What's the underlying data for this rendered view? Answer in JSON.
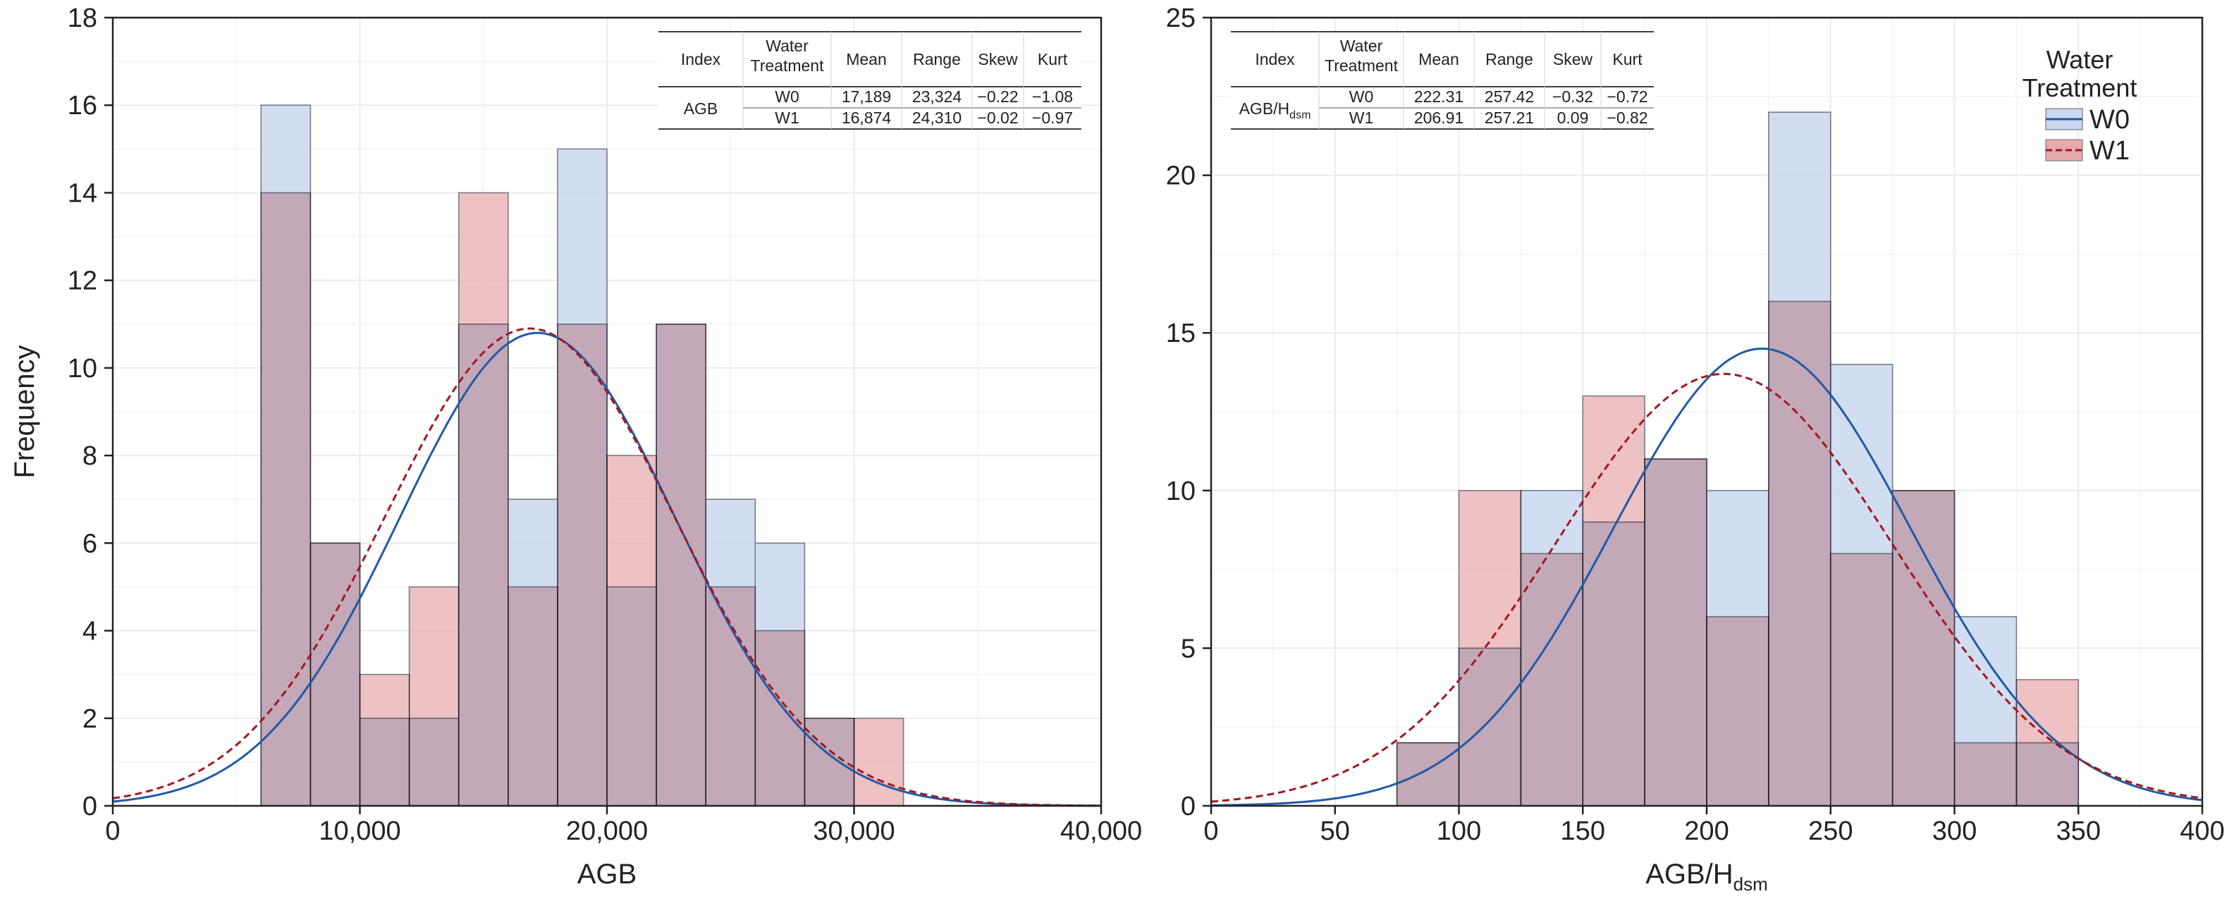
{
  "colors": {
    "w0_fill": "#c9d8ee",
    "w1_fill": "#e8a9aa",
    "w0_line": "#1f5aa6",
    "w1_line": "#a3171c",
    "overlap": "#c7a4b2",
    "bar_edge": "#7a7a8a",
    "grid": "#ebebeb"
  },
  "chart_data": [
    {
      "type": "bar",
      "subtype": "overlaid-histogram",
      "xlabel": "AGB",
      "ylabel": "Frequency",
      "xlim": [
        0,
        40000
      ],
      "ylim": [
        0,
        18
      ],
      "xticks": [
        0,
        10000,
        20000,
        30000,
        40000
      ],
      "xtick_labels": [
        "0",
        "10,000",
        "20,000",
        "30,000",
        "40,000"
      ],
      "yticks": [
        0,
        2,
        4,
        6,
        8,
        10,
        12,
        14,
        16,
        18
      ],
      "ytick_labels": [
        "0",
        "2",
        "4",
        "6",
        "8",
        "10",
        "12",
        "14",
        "16",
        "18"
      ],
      "bin_edges": [
        6000,
        8000,
        10000,
        12000,
        14000,
        16000,
        18000,
        20000,
        22000,
        24000,
        26000,
        28000,
        30000,
        32000
      ],
      "series": [
        {
          "name": "W0",
          "values": [
            16,
            6,
            2,
            2,
            11,
            7,
            15,
            5,
            11,
            7,
            6,
            2,
            0
          ],
          "normal": {
            "mean": 17189,
            "sd": 5600,
            "peak": 10.8
          }
        },
        {
          "name": "W1",
          "values": [
            14,
            6,
            3,
            5,
            14,
            5,
            11,
            8,
            11,
            5,
            4,
            2,
            2
          ],
          "normal": {
            "mean": 16874,
            "sd": 5850,
            "peak": 10.9
          }
        }
      ],
      "stats_table": {
        "headers": [
          "Index",
          "Water Treatment",
          "Mean",
          "Range",
          "Skew",
          "Kurt"
        ],
        "header_lines": [
          [
            "Index"
          ],
          [
            "Water",
            "Treatment"
          ],
          [
            "Mean"
          ],
          [
            "Range"
          ],
          [
            "Skew"
          ],
          [
            "Kurt"
          ]
        ],
        "index_label": "AGB",
        "rows": [
          [
            "W0",
            "17,189",
            "23,324",
            "−0.22",
            "−1.08"
          ],
          [
            "W1",
            "16,874",
            "24,310",
            "−0.02",
            "−0.97"
          ]
        ]
      }
    },
    {
      "type": "bar",
      "subtype": "overlaid-histogram",
      "xlabel": "AGB/H",
      "xlabel_sub": "dsm",
      "ylabel": "",
      "xlim": [
        0,
        400
      ],
      "ylim": [
        0,
        25
      ],
      "xticks": [
        0,
        50,
        100,
        150,
        200,
        250,
        300,
        350,
        400
      ],
      "xtick_labels": [
        "0",
        "50",
        "100",
        "150",
        "200",
        "250",
        "300",
        "350",
        "400"
      ],
      "yticks": [
        0,
        5,
        10,
        15,
        20,
        25
      ],
      "ytick_labels": [
        "0",
        "5",
        "10",
        "15",
        "20",
        "25"
      ],
      "bin_edges": [
        75,
        100,
        125,
        150,
        175,
        200,
        225,
        250,
        275,
        300,
        325,
        350
      ],
      "series": [
        {
          "name": "W0",
          "values": [
            2,
            5,
            10,
            9,
            11,
            10,
            22,
            14,
            10,
            6,
            2
          ],
          "normal": {
            "mean": 222.31,
            "sd": 60,
            "peak": 14.5
          }
        },
        {
          "name": "W1",
          "values": [
            2,
            10,
            8,
            13,
            11,
            6,
            16,
            8,
            10,
            2,
            4
          ],
          "normal": {
            "mean": 206.91,
            "sd": 68,
            "peak": 13.7
          }
        }
      ],
      "legend": {
        "title_lines": [
          "Water",
          "Treatment"
        ],
        "entries": [
          "W0",
          "W1"
        ],
        "position": "top-right"
      },
      "stats_table": {
        "headers": [
          "Index",
          "Water Treatment",
          "Mean",
          "Range",
          "Skew",
          "Kurt"
        ],
        "header_lines": [
          [
            "Index"
          ],
          [
            "Water",
            "Treatment"
          ],
          [
            "Mean"
          ],
          [
            "Range"
          ],
          [
            "Skew"
          ],
          [
            "Kurt"
          ]
        ],
        "index_label": "AGB/H",
        "index_label_sub": "dsm",
        "rows": [
          [
            "W0",
            "222.31",
            "257.42",
            "−0.32",
            "−0.72"
          ],
          [
            "W1",
            "206.91",
            "257.21",
            "0.09",
            "−0.82"
          ]
        ]
      }
    }
  ]
}
